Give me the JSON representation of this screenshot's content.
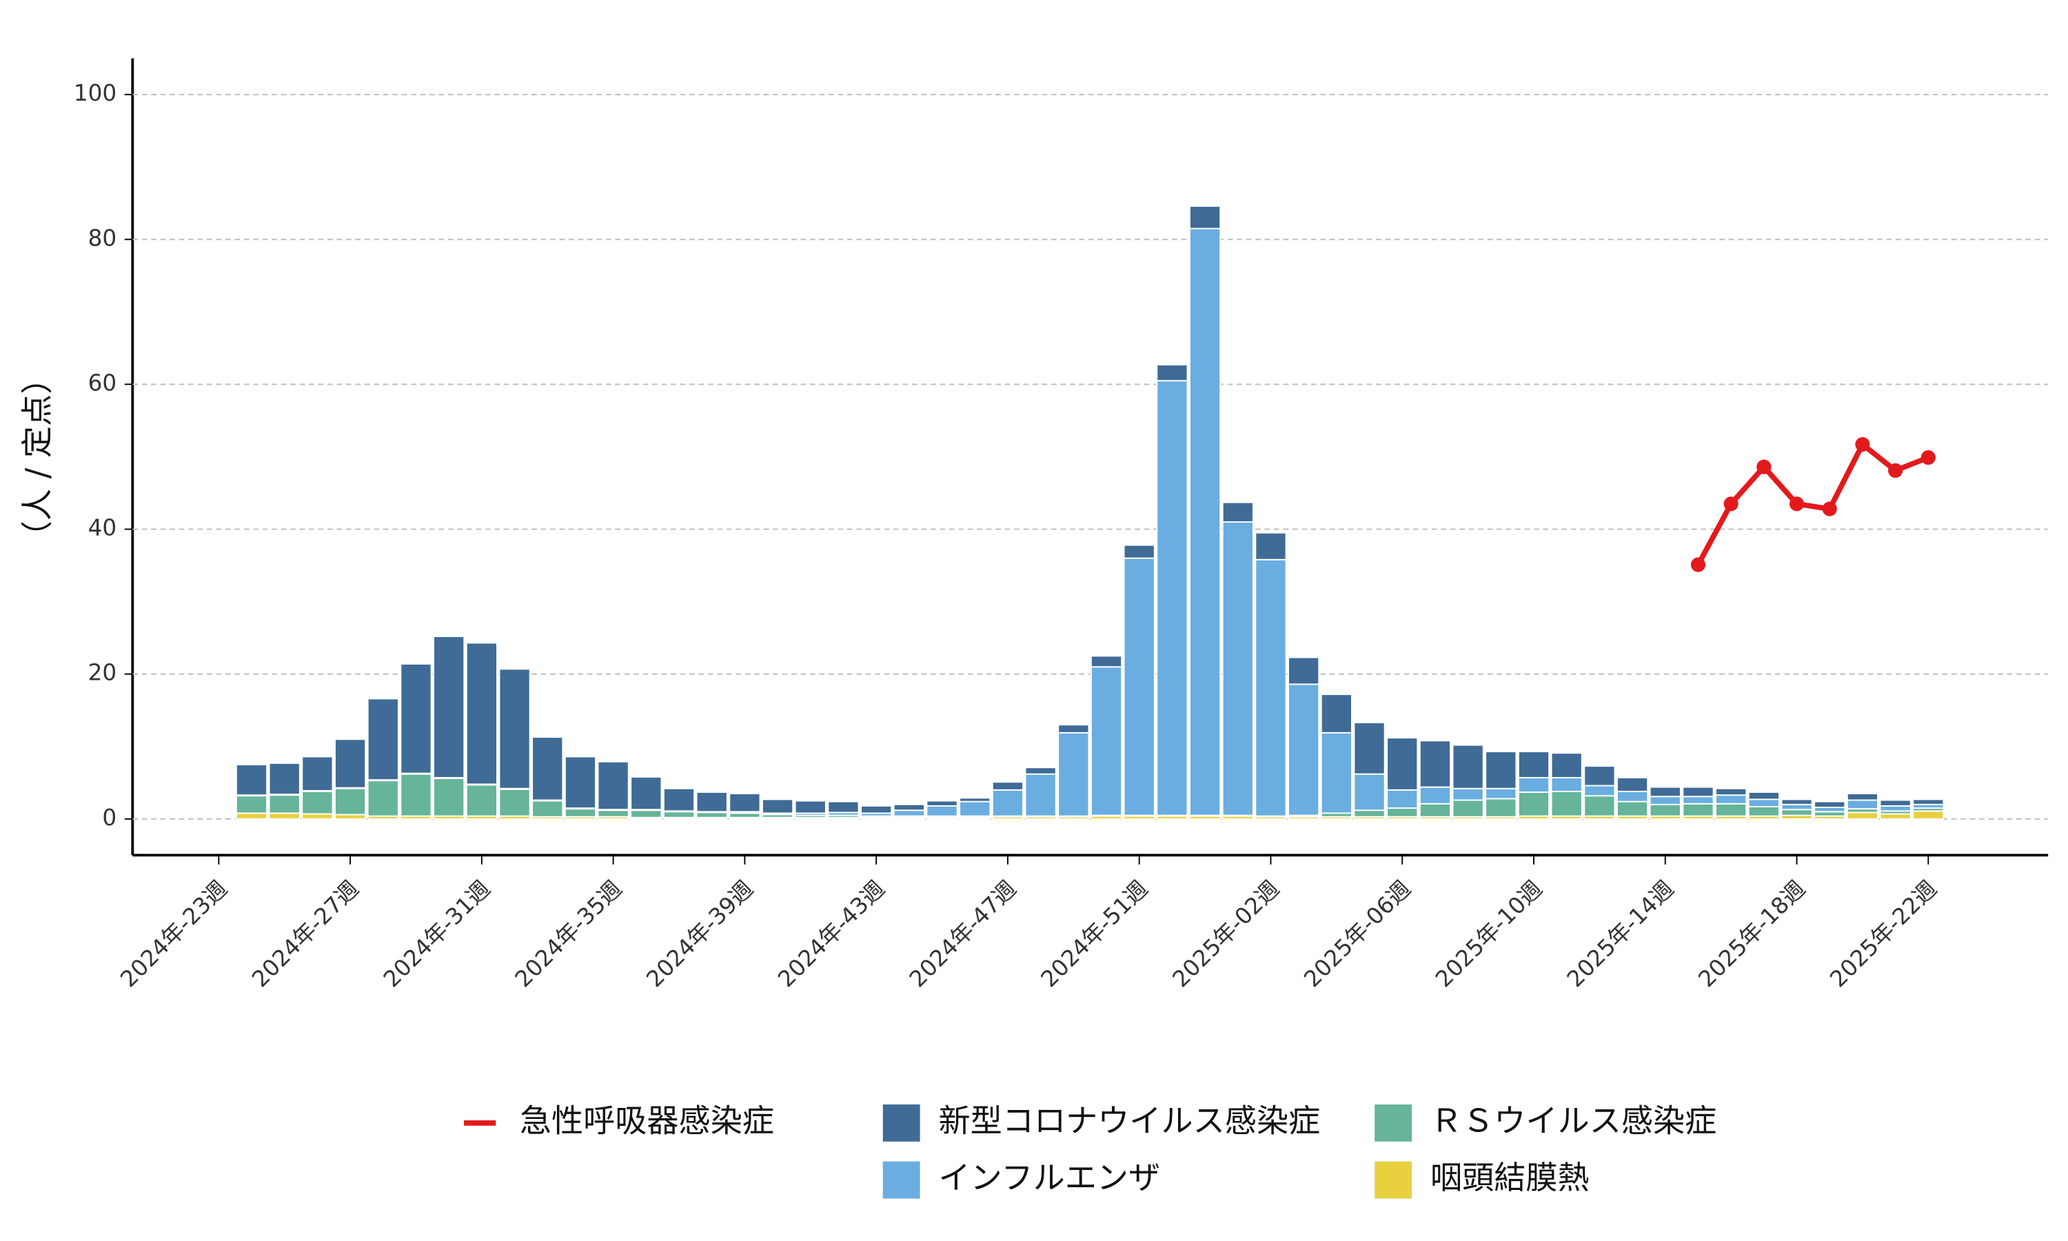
{
  "chart_data": {
    "type": "bar",
    "y_label": "（人 / 定点）",
    "categories": [
      "2024年-23週",
      null,
      null,
      null,
      "2024年-27週",
      null,
      null,
      null,
      "2024年-31週",
      null,
      null,
      null,
      "2024年-35週",
      null,
      null,
      null,
      "2024年-39週",
      null,
      null,
      null,
      "2024年-43週",
      null,
      null,
      null,
      "2024年-47週",
      null,
      null,
      null,
      "2024年-51週",
      null,
      null,
      null,
      "2025年-02週",
      null,
      null,
      null,
      "2025年-06週",
      null,
      null,
      null,
      "2025年-10週",
      null,
      null,
      null,
      "2025年-14週",
      null,
      null,
      null,
      "2025年-18週",
      null,
      null,
      null,
      "2025年-22週"
    ],
    "series": [
      {
        "name": "急性呼吸器感染症",
        "type": "line",
        "color": "#e31a1c",
        "values": [
          null,
          null,
          null,
          null,
          null,
          null,
          null,
          null,
          null,
          null,
          null,
          null,
          null,
          null,
          null,
          null,
          null,
          null,
          null,
          null,
          null,
          null,
          null,
          null,
          null,
          null,
          null,
          null,
          null,
          null,
          null,
          null,
          null,
          null,
          null,
          null,
          null,
          null,
          null,
          null,
          null,
          null,
          null,
          null,
          null,
          35.1,
          43.5,
          48.6,
          43.5,
          42.8,
          51.7,
          48.1,
          49.9
        ]
      },
      {
        "name": "咽頭結膜熱",
        "type": "bar",
        "color": "#e8d03f",
        "values": [
          null,
          0.8,
          0.8,
          0.7,
          0.6,
          0.4,
          0.4,
          0.4,
          0.4,
          0.4,
          0.3,
          0.3,
          0.3,
          0.2,
          0.2,
          0.2,
          0.2,
          0.2,
          0.2,
          0.2,
          0.2,
          0.2,
          0.2,
          0.2,
          0.3,
          0.3,
          0.3,
          0.4,
          0.4,
          0.4,
          0.4,
          0.4,
          0.3,
          0.3,
          0.3,
          0.3,
          0.3,
          0.3,
          0.3,
          0.3,
          0.4,
          0.4,
          0.4,
          0.4,
          0.4,
          0.4,
          0.4,
          0.4,
          0.5,
          0.4,
          0.9,
          0.7,
          1.1
        ]
      },
      {
        "name": "ＲＳウイルス感染症",
        "type": "bar",
        "color": "#66b49a",
        "values": [
          null,
          2.4,
          2.5,
          3.1,
          3.6,
          4.9,
          5.8,
          5.2,
          4.3,
          3.7,
          2.2,
          1.1,
          0.9,
          1.0,
          0.8,
          0.7,
          0.6,
          0.4,
          0.3,
          0.3,
          0.2,
          0.2,
          0.2,
          0.2,
          0.1,
          0.1,
          0.1,
          0.1,
          0.1,
          0.1,
          0.1,
          0.1,
          0.1,
          0.2,
          0.5,
          0.9,
          1.2,
          1.8,
          2.3,
          2.5,
          3.3,
          3.4,
          2.8,
          2.0,
          1.6,
          1.7,
          1.7,
          1.3,
          0.8,
          0.6,
          0.5,
          0.4,
          0.4
        ]
      },
      {
        "name": "インフルエンザ",
        "type": "bar",
        "color": "#6aade0",
        "values": [
          null,
          0.1,
          0.1,
          0.1,
          0.1,
          0.1,
          0.1,
          0.1,
          0.1,
          0.1,
          0.1,
          0.1,
          0.1,
          0.1,
          0.1,
          0.1,
          0.2,
          0.2,
          0.3,
          0.4,
          0.4,
          0.8,
          1.4,
          2.0,
          3.6,
          5.8,
          11.5,
          20.5,
          35.5,
          60.0,
          81.0,
          40.5,
          35.4,
          18.1,
          11.1,
          5.0,
          2.5,
          2.3,
          1.6,
          1.4,
          2.0,
          1.9,
          1.4,
          1.4,
          1.1,
          1.0,
          1.2,
          1.0,
          0.7,
          0.6,
          1.2,
          0.7,
          0.5
        ]
      },
      {
        "name": "新型コロナウイルス感染症",
        "type": "bar",
        "color": "#3f6b96",
        "values": [
          null,
          4.2,
          4.3,
          4.7,
          6.7,
          11.2,
          15.1,
          19.5,
          19.5,
          16.5,
          8.7,
          7.1,
          6.6,
          4.5,
          3.1,
          2.7,
          2.5,
          1.9,
          1.7,
          1.5,
          1.0,
          0.8,
          0.7,
          0.5,
          1.1,
          0.9,
          1.1,
          1.5,
          1.8,
          2.2,
          3.1,
          2.7,
          3.7,
          3.7,
          5.3,
          7.1,
          7.2,
          6.4,
          6.0,
          5.1,
          3.6,
          3.4,
          2.7,
          1.9,
          1.3,
          1.3,
          0.9,
          1.0,
          0.7,
          0.8,
          0.9,
          0.8,
          0.7
        ]
      }
    ],
    "ylim": [
      -5,
      105
    ],
    "yticks": [
      0,
      20,
      40,
      60,
      80,
      100
    ],
    "grid": true
  }
}
